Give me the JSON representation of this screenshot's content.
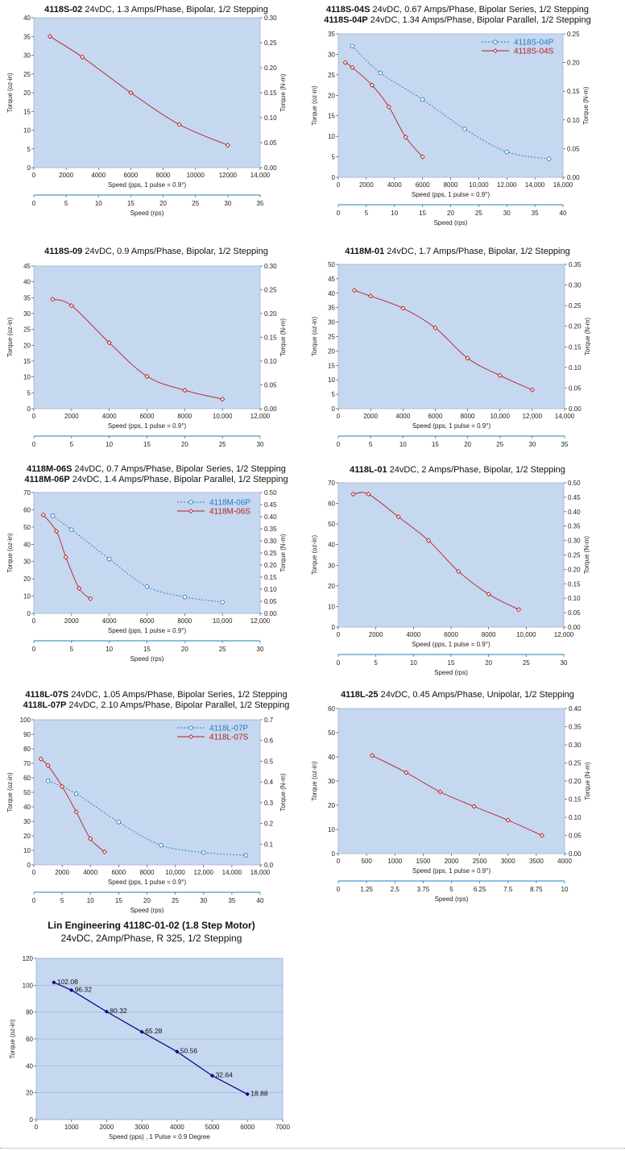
{
  "chart_data": [
    {
      "type": "line",
      "title_bold": [
        "4118S-02"
      ],
      "title_rest": [
        " 24vDC, 1.3 Amps/Phase, Bipolar, 1/2 Stepping"
      ],
      "ylabel": "Torque (oz-in)",
      "y2label": "Torque (N-m)",
      "xlabel": "Speed (pps, 1 pulse = 0.9°)",
      "x2label": "Speed (rps)",
      "xlim": [
        0,
        14000
      ],
      "xticks": [
        0,
        2000,
        4000,
        6000,
        8000,
        10000,
        12000,
        14000
      ],
      "xticklabels": [
        "0",
        "2000",
        "4000",
        "6000",
        "8000",
        "10000",
        "12000",
        "14,000"
      ],
      "ylim": [
        0,
        40
      ],
      "yticks": [
        0,
        5,
        10,
        15,
        20,
        25,
        30,
        35,
        40
      ],
      "y2ticks": [
        "0.00",
        "0.05",
        "0.10",
        "0.15",
        "0.20",
        "0.25",
        "0.30"
      ],
      "x2ticks": [
        "0",
        "5",
        "10",
        "15",
        "20",
        "25",
        "30",
        "35"
      ],
      "series": [
        {
          "color": "#b22222",
          "style": "solid",
          "marker": "diamond",
          "x": [
            1000,
            3000,
            6000,
            9000,
            12000
          ],
          "y": [
            35,
            29.5,
            20,
            11.5,
            6
          ]
        }
      ]
    },
    {
      "type": "line",
      "title_bold": [
        "4118S-04S",
        "4118S-04P"
      ],
      "title_rest": [
        " 24vDC, 0.67 Amps/Phase, Bipolar Series, 1/2 Stepping",
        " 24vDC, 1.34 Amps/Phase, Bipolar Parallel, 1/2 Stepping"
      ],
      "ylabel": "Torque (oz-in)",
      "y2label": "Torque (N-m)",
      "xlabel": "Speed (pps, 1 pulse = 0.9°)",
      "x2label": "Speed (rps)",
      "xlim": [
        0,
        16000
      ],
      "xticks": [
        0,
        2000,
        4000,
        6000,
        8000,
        10000,
        12000,
        14000,
        16000
      ],
      "xticklabels": [
        "0",
        "2000",
        "4000",
        "6000",
        "8000",
        "10,000",
        "12,000",
        "14,000",
        "16,000"
      ],
      "ylim": [
        0,
        35
      ],
      "yticks": [
        0,
        5,
        10,
        15,
        20,
        25,
        30,
        35
      ],
      "y2ticks": [
        "0.00",
        "0.05",
        "0.10",
        "0.15",
        "0.20",
        "0.25"
      ],
      "x2ticks": [
        "0",
        "5",
        "10",
        "15",
        "20",
        "25",
        "30",
        "35",
        "40"
      ],
      "legend": [
        "4118S-04P",
        "4118S-04S"
      ],
      "series": [
        {
          "name": "4118S-04P",
          "color": "#1a7fc4",
          "style": "dashed",
          "marker": "circle",
          "x": [
            1000,
            3000,
            6000,
            9000,
            12000,
            15000
          ],
          "y": [
            32,
            25.5,
            19,
            11.8,
            6.2,
            4.5
          ]
        },
        {
          "name": "4118S-04S",
          "color": "#b22222",
          "style": "solid",
          "marker": "diamond",
          "x": [
            500,
            1000,
            2400,
            3600,
            4800,
            6000
          ],
          "y": [
            28,
            26.8,
            22.5,
            17.2,
            9.8,
            5
          ]
        }
      ]
    },
    {
      "type": "line",
      "title_bold": [
        "4118S-09"
      ],
      "title_rest": [
        " 24vDC, 0.9 Amps/Phase, Bipolar, 1/2 Stepping"
      ],
      "ylabel": "Torque (oz-in)",
      "y2label": "Torque (N-m)",
      "xlabel": "Speed (pps, 1 pulse = 0.9°)",
      "x2label": "",
      "xlim": [
        0,
        12000
      ],
      "xticks": [
        0,
        2000,
        4000,
        6000,
        8000,
        10000,
        12000
      ],
      "xticklabels": [
        "0",
        "2000",
        "4000",
        "6000",
        "8000",
        "10,000",
        "12,000"
      ],
      "ylim": [
        0,
        45
      ],
      "yticks": [
        0,
        5,
        10,
        15,
        20,
        25,
        30,
        35,
        40,
        45
      ],
      "y2ticks": [
        "0.00",
        "0.05",
        "0.10",
        "0.15",
        "0.20",
        "0.25",
        "0.30"
      ],
      "x2ticks": [
        "0",
        "5",
        "10",
        "15",
        "20",
        "25",
        "30"
      ],
      "series": [
        {
          "color": "#b22222",
          "style": "solid",
          "marker": "diamond",
          "x": [
            1000,
            2000,
            4000,
            6000,
            8000,
            10000
          ],
          "y": [
            34.5,
            32.5,
            20.8,
            10.2,
            5.8,
            3
          ]
        }
      ]
    },
    {
      "type": "line",
      "title_bold": [
        "4118M-01"
      ],
      "title_rest": [
        " 24vDC, 1.7 Amps/Phase, Bipolar, 1/2 Stepping"
      ],
      "ylabel": "Torque (oz-in)",
      "y2label": "Torque (N-m)",
      "xlabel": "Speed (pps, 1 pulse = 0.9°)",
      "x2label": "",
      "xlim": [
        0,
        14000
      ],
      "xticks": [
        0,
        2000,
        4000,
        6000,
        8000,
        10000,
        12000,
        14000
      ],
      "xticklabels": [
        "0",
        "2000",
        "4000",
        "6000",
        "8000",
        "10,000",
        "12,000",
        "14,000"
      ],
      "ylim": [
        0,
        50
      ],
      "yticks": [
        0,
        5,
        10,
        15,
        20,
        25,
        30,
        35,
        40,
        45,
        50
      ],
      "y2ticks": [
        "0.00",
        "0.05",
        "0.10",
        "0.15",
        "0.20",
        "0.25",
        "0.30",
        "0.35"
      ],
      "x2ticks": [
        "0",
        "5",
        "10",
        "15",
        "20",
        "25",
        "30",
        "35"
      ],
      "series": [
        {
          "color": "#b22222",
          "style": "solid",
          "marker": "diamond",
          "x": [
            1000,
            2000,
            4000,
            6000,
            8000,
            10000,
            12000
          ],
          "y": [
            41,
            39,
            34.8,
            28,
            17.5,
            11.5,
            6.5
          ]
        }
      ]
    },
    {
      "type": "line",
      "title_bold": [
        "4118M-06S",
        "4118M-06P"
      ],
      "title_rest": [
        " 24vDC, 0.7 Amps/Phase, Bipolar Series, 1/2 Stepping",
        " 24vDC, 1.4 Amps/Phase, Bipolar Parallel, 1/2 Stepping"
      ],
      "ylabel": "Torque (oz-in)",
      "y2label": "Torque (N-m)",
      "xlabel": "Speed (pps, 1 pulse = 0.9°)",
      "x2label": "Speed (rps)",
      "xlim": [
        0,
        12000
      ],
      "xticks": [
        0,
        2000,
        4000,
        6000,
        8000,
        10000,
        12000
      ],
      "xticklabels": [
        "0",
        "2000",
        "4000",
        "6000",
        "8000",
        "10,000",
        "12,000"
      ],
      "ylim": [
        0,
        70
      ],
      "yticks": [
        0,
        10,
        20,
        30,
        40,
        50,
        60,
        70
      ],
      "y2ticks": [
        "0.00",
        "0.05",
        "0.10",
        "0.15",
        "0.20",
        "0.25",
        "0.30",
        "0.35",
        "0.40",
        "0.45",
        "0.50"
      ],
      "x2ticks": [
        "0",
        "5",
        "10",
        "15",
        "20",
        "25",
        "30"
      ],
      "legend": [
        "4118M-06P",
        "4118M-06S"
      ],
      "series": [
        {
          "name": "4118M-06P",
          "color": "#1a7fc4",
          "style": "dashed",
          "marker": "circle",
          "x": [
            1000,
            2000,
            4000,
            6000,
            8000,
            10000
          ],
          "y": [
            56.5,
            48.5,
            31.5,
            15.5,
            9.5,
            6.5
          ]
        },
        {
          "name": "4118M-06S",
          "color": "#b22222",
          "style": "solid",
          "marker": "diamond",
          "x": [
            500,
            1200,
            1700,
            2400,
            3000
          ],
          "y": [
            57,
            47.5,
            32.5,
            14.5,
            8.5
          ]
        }
      ]
    },
    {
      "type": "line",
      "title_bold": [
        "4118L-01"
      ],
      "title_rest": [
        " 24vDC, 2 Amps/Phase, Bipolar, 1/2 Stepping"
      ],
      "ylabel": "Torque (oz-in)",
      "y2label": "Torque (N-m)",
      "xlabel": "Speed (pps, 1 pulse = 0.9°)",
      "x2label": "Speed (rps)",
      "xlim": [
        0,
        12000
      ],
      "xticks": [
        0,
        2000,
        4000,
        6000,
        8000,
        10000,
        12000
      ],
      "xticklabels": [
        "0",
        "2000",
        "4000",
        "6000",
        "8000",
        "10,000",
        "12,000"
      ],
      "ylim": [
        0,
        70
      ],
      "yticks": [
        0,
        10,
        20,
        30,
        40,
        50,
        60,
        70
      ],
      "y2ticks": [
        "0.00",
        "0.05",
        "0.10",
        "0.15",
        "0.20",
        "0.25",
        "0.30",
        "0.35",
        "0.40",
        "0.45",
        "0.50"
      ],
      "x2ticks": [
        "0",
        "5",
        "10",
        "15",
        "20",
        "25",
        "30"
      ],
      "series": [
        {
          "color": "#b22222",
          "style": "solid",
          "marker": "diamond",
          "x": [
            800,
            1600,
            3200,
            4800,
            6400,
            8000,
            9600
          ],
          "y": [
            64.5,
            64.5,
            53.5,
            42,
            27,
            16,
            8.5
          ]
        }
      ]
    },
    {
      "type": "line",
      "title_bold": [
        "4118L-07S",
        "4118L-07P"
      ],
      "title_rest": [
        " 24vDC, 1.05 Amps/Phase, Bipolar Series, 1/2 Stepping",
        " 24vDC, 2.10 Amps/Phase, Bipolar Parallel, 1/2 Stepping"
      ],
      "ylabel": "Torque (oz-in)",
      "y2label": "Torque (N-m)",
      "xlabel": "Speed (pps, 1 pulse = 0.9°)",
      "x2label": "Speed (rps)",
      "xlim": [
        0,
        16000
      ],
      "xticks": [
        0,
        2000,
        4000,
        6000,
        8000,
        10000,
        12000,
        14000,
        16000
      ],
      "xticklabels": [
        "0",
        "2000",
        "4000",
        "6000",
        "8000",
        "10,000",
        "12,000",
        "14,000",
        "16,000"
      ],
      "ylim": [
        0,
        100
      ],
      "yticks": [
        0,
        10,
        20,
        30,
        40,
        50,
        60,
        70,
        80,
        90,
        100
      ],
      "y2ticks": [
        "0.0",
        "0.1",
        "0.2",
        "0.3",
        "0.4",
        "0.5",
        "0.6",
        "0.7"
      ],
      "x2ticks": [
        "0",
        "5",
        "10",
        "15",
        "20",
        "25",
        "30",
        "35",
        "40"
      ],
      "legend": [
        "4118L-07P",
        "4118L-07S"
      ],
      "series": [
        {
          "name": "4118L-07P",
          "color": "#1a7fc4",
          "style": "dashed",
          "marker": "circle",
          "x": [
            1000,
            3000,
            6000,
            9000,
            12000,
            15000
          ],
          "y": [
            58,
            49,
            29.5,
            13.5,
            8.5,
            6.5
          ]
        },
        {
          "name": "4118L-07S",
          "color": "#b22222",
          "style": "solid",
          "marker": "diamond",
          "x": [
            500,
            1000,
            2000,
            3000,
            4000,
            5000
          ],
          "y": [
            73,
            68.5,
            54,
            36.5,
            18,
            9
          ]
        }
      ]
    },
    {
      "type": "line",
      "title_bold": [
        "4118L-25"
      ],
      "title_rest": [
        " 24vDC, 0.45 Amps/Phase, Unipolar, 1/2 Stepping"
      ],
      "ylabel": "Torque (oz-in)",
      "y2label": "Torque (N-m)",
      "xlabel": "Speed (pps, 1 pulse = 0.9°)",
      "x2label": "Speed (rps)",
      "xlim": [
        0,
        4000
      ],
      "xticks": [
        0,
        500,
        1000,
        1500,
        2000,
        2500,
        3000,
        3500,
        4000
      ],
      "xticklabels": [
        "0",
        "500",
        "1000",
        "1500",
        "2000",
        "2500",
        "3000",
        "3500",
        "4000"
      ],
      "ylim": [
        0,
        60
      ],
      "yticks": [
        0,
        10,
        20,
        30,
        40,
        50,
        60
      ],
      "y2ticks": [
        "0.00",
        "0.05",
        "0.10",
        "0.15",
        "0.20",
        "0.25",
        "0.30",
        "0.35",
        "0.40"
      ],
      "x2ticks": [
        "0",
        "1.25",
        "2.5",
        "3.75",
        "5",
        "6.25",
        "7.5",
        "8.75",
        "10"
      ],
      "series": [
        {
          "color": "#b22222",
          "style": "solid",
          "marker": "diamond",
          "x": [
            600,
            1200,
            1800,
            2400,
            3000,
            3600
          ],
          "y": [
            40.5,
            33.5,
            25.5,
            19.5,
            13.8,
            7.5
          ]
        }
      ]
    },
    {
      "type": "line",
      "title": "Lin Engineering 4118C-01-02 (1.8 Step Motor)",
      "subtitle": "24vDC, 2Amp/Phase, R 325, 1/2 Stepping",
      "ylabel": "Torque (oz-in)",
      "xlabel": "Speed (pps) , 1 Pulse = 0.9 Degree",
      "xlim": [
        0,
        7000
      ],
      "xticks": [
        0,
        1000,
        2000,
        3000,
        4000,
        5000,
        6000,
        7000
      ],
      "ylim": [
        0,
        120
      ],
      "yticks": [
        0,
        20,
        40,
        60,
        80,
        100,
        120
      ],
      "series": [
        {
          "color": "#000080",
          "style": "solid",
          "marker": "diamond",
          "x": [
            500,
            1000,
            2000,
            3000,
            4000,
            5000,
            6000
          ],
          "y": [
            102.08,
            96.32,
            80.32,
            65.28,
            50.56,
            32.64,
            18.88
          ],
          "labels": [
            "102.08",
            "96.32",
            "80.32",
            "65.28",
            "50.56",
            "32.64",
            "18.88"
          ]
        }
      ]
    }
  ]
}
